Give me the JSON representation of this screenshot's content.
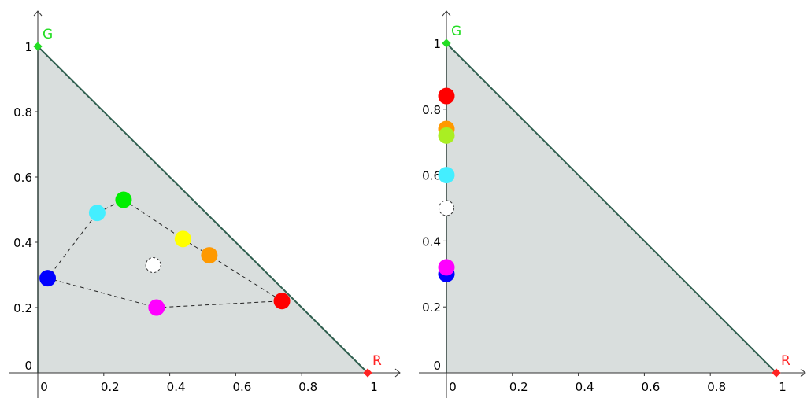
{
  "chart_data": [
    {
      "type": "scatter",
      "title": "",
      "xlabel": "",
      "ylabel": "",
      "xlim": [
        0,
        1
      ],
      "ylim": [
        0,
        1
      ],
      "grid": false,
      "x_ticks": [
        "0",
        "0.2",
        "0.4",
        "0.6",
        "0.8",
        "1"
      ],
      "y_ticks": [
        "0",
        "0.2",
        "0.4",
        "0.6",
        "0.8",
        "1"
      ],
      "vertices": [
        {
          "label": "G",
          "x": 0,
          "y": 1,
          "color": "#22dd22"
        },
        {
          "label": "R",
          "x": 1,
          "y": 0,
          "color": "#ff2222"
        }
      ],
      "triangle_fill": "#d9dedd",
      "triangle_edge": "#2f5f4f",
      "points": [
        {
          "color": "#ff0000",
          "x": 0.74,
          "y": 0.22
        },
        {
          "color": "#ff9900",
          "x": 0.52,
          "y": 0.36
        },
        {
          "color": "#ffff00",
          "x": 0.44,
          "y": 0.41
        },
        {
          "color": "#00ee00",
          "x": 0.26,
          "y": 0.53
        },
        {
          "color": "#44eeff",
          "x": 0.18,
          "y": 0.49
        },
        {
          "color": "#0000ff",
          "x": 0.03,
          "y": 0.29
        },
        {
          "color": "#ff00ff",
          "x": 0.36,
          "y": 0.2
        }
      ],
      "white_point": {
        "x": 0.35,
        "y": 0.33
      },
      "polygon_order": [
        0,
        1,
        2,
        3,
        4,
        5,
        6,
        0
      ]
    },
    {
      "type": "scatter",
      "title": "",
      "xlabel": "",
      "ylabel": "",
      "xlim": [
        0,
        1
      ],
      "ylim": [
        0,
        1
      ],
      "grid": false,
      "x_ticks": [
        "0",
        "0.2",
        "0.4",
        "0.6",
        "0.8",
        "1"
      ],
      "y_ticks": [
        "0",
        "0.2",
        "0.4",
        "0.6",
        "0.8",
        "1"
      ],
      "vertices": [
        {
          "label": "G",
          "x": 0,
          "y": 1,
          "color": "#22dd22"
        },
        {
          "label": "R",
          "x": 1,
          "y": 0,
          "color": "#ff2222"
        }
      ],
      "triangle_fill": "#d9dedd",
      "triangle_edge": "#2f5f4f",
      "points": [
        {
          "color": "#ff0000",
          "x": 0,
          "y": 0.84
        },
        {
          "color": "#ff9900",
          "x": 0,
          "y": 0.74
        },
        {
          "color": "#aaee22",
          "x": 0,
          "y": 0.72
        },
        {
          "color": "#44eeff",
          "x": 0,
          "y": 0.6
        },
        {
          "color": "#0000ff",
          "x": 0,
          "y": 0.3
        },
        {
          "color": "#ff00ff",
          "x": 0,
          "y": 0.32
        }
      ],
      "white_point": {
        "x": 0,
        "y": 0.5
      },
      "polygon_order": []
    }
  ]
}
